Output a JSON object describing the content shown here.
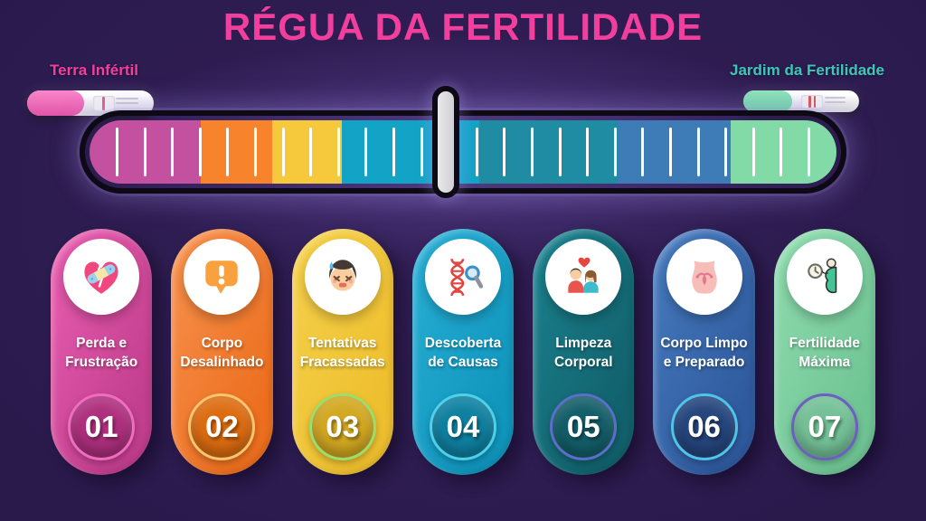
{
  "title": "RÉGUA DA FERTILIDADE",
  "colors": {
    "background": "#2a1a4c",
    "title": "#f23f9e",
    "left_label": "#f23f9e",
    "right_label": "#3bc8b8"
  },
  "scale": {
    "left_label": "Terra Infértil",
    "right_label": "Jardim da Fertilidade"
  },
  "pregnancy_tests": {
    "left": {
      "name": "negative-pregnancy-test",
      "cap_color": "#ef64b2",
      "result_lines": 1,
      "line_color": "#e0607f"
    },
    "right": {
      "name": "positive-pregnancy-test",
      "cap_color": "#7fe0b0",
      "result_lines": 2,
      "line_color": "#d9534f"
    }
  },
  "ruler": {
    "outline_color": "#0d0a16",
    "divider_color": "#d8d8db",
    "tick_color": "#ffffff",
    "tick_count": 26,
    "segments": [
      {
        "color": "#c4519f",
        "width_pct": 14.9
      },
      {
        "color": "#f8832d",
        "width_pct": 9.5
      },
      {
        "color": "#f6c93c",
        "width_pct": 9.4
      },
      {
        "color": "#13a3c7",
        "width_pct": 18.4
      },
      {
        "color": "#1f8ca3",
        "width_pct": 18.5
      },
      {
        "color": "#3e7cb7",
        "width_pct": 15.2
      },
      {
        "color": "#82dba7",
        "width_pct": 14.1
      }
    ]
  },
  "cards": [
    {
      "number": "01",
      "lines": [
        "Perda e",
        "Frustração"
      ],
      "icon": "broken-heart-bandage-icon",
      "bg_from": "#ea5fb1",
      "bg_to": "#c23e8e",
      "circle": "#ae2f7d",
      "ring": "#f06cc0"
    },
    {
      "number": "02",
      "lines": [
        "Corpo",
        "Desalinhado"
      ],
      "icon": "exclamation-bubble-icon",
      "bg_from": "#f8924f",
      "bg_to": "#ec6f1f",
      "circle": "#dd6c10",
      "ring": "#fbc46d"
    },
    {
      "number": "03",
      "lines": [
        "Tentativas",
        "Fracassadas"
      ],
      "icon": "frustrated-girl-icon",
      "bg_from": "#f5d14c",
      "bg_to": "#eebf2e",
      "circle": "#d3a821",
      "ring": "#9ade6b"
    },
    {
      "number": "04",
      "lines": [
        "Descoberta",
        "de Causas"
      ],
      "icon": "dna-magnifier-icon",
      "bg_from": "#29afd6",
      "bg_to": "#1095bc",
      "circle": "#0e80a0",
      "ring": "#4fd0ea"
    },
    {
      "number": "05",
      "lines": [
        "Limpeza",
        "Corporal"
      ],
      "icon": "couple-heart-icon",
      "bg_from": "#1b828f",
      "bg_to": "#11616c",
      "circle": "#135e69",
      "ring": "#5b6fc8"
    },
    {
      "number": "06",
      "lines": [
        "Corpo Limpo",
        "e Preparado"
      ],
      "icon": "female-body-uterus-icon",
      "bg_from": "#477cbf",
      "bg_to": "#2f5a9e",
      "circle": "#25457d",
      "ring": "#4fc3e8"
    },
    {
      "number": "07",
      "lines": [
        "Fertilidade",
        "Máxima"
      ],
      "icon": "pregnant-woman-clock-icon",
      "bg_from": "#90dcb0",
      "bg_to": "#6fc494",
      "circle": "#74c197",
      "ring": "#6b5fc0"
    }
  ]
}
